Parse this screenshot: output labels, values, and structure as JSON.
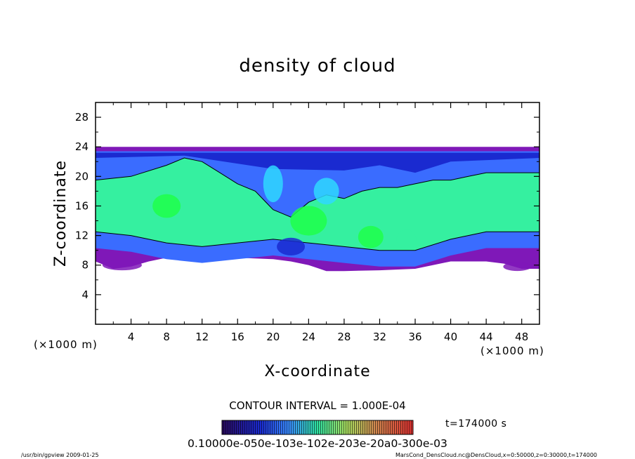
{
  "chart_data": {
    "type": "heatmap",
    "title": "density of cloud",
    "xlabel": "X-coordinate",
    "ylabel": "Z-coordinate",
    "x_unit": "(×1000 m)",
    "y_unit": "(×1000 m)",
    "xlim": [
      0,
      50
    ],
    "ylim": [
      0,
      30
    ],
    "x_ticks": [
      4,
      8,
      12,
      16,
      20,
      24,
      28,
      32,
      36,
      40,
      44,
      48
    ],
    "y_ticks": [
      4,
      8,
      12,
      16,
      20,
      24,
      28
    ],
    "x_tick_labels": [
      "4",
      "8",
      "12",
      "16",
      "20",
      "24",
      "28",
      "32",
      "36",
      "40",
      "44",
      "48"
    ],
    "y_tick_labels": [
      "4",
      "8",
      "12",
      "16",
      "20",
      "24",
      "28"
    ],
    "contour_interval_text": "CONTOUR INTERVAL = 1.000E-04",
    "time_text": "t=174000 s",
    "colorbar_text": "0.10000e-050e-103e-102e-203e-20a0-300e-03",
    "footer_left": "/usr/bin/gpview  2009-01-25",
    "footer_right": "MarsCond_DensCloud.nc@DensCloud,x=0:50000,z=0:30000,t=174000",
    "cloud_top_z": 24,
    "cloud_base_z": 7,
    "green_top_profile": {
      "x": [
        0,
        4,
        8,
        10,
        12,
        14,
        16,
        18,
        20,
        22,
        24,
        26,
        28,
        30,
        32,
        34,
        36,
        38,
        40,
        42,
        44,
        46,
        48,
        50
      ],
      "z": [
        19.5,
        20.0,
        21.5,
        22.5,
        22.0,
        20.5,
        19.0,
        18.0,
        15.5,
        14.5,
        16.5,
        17.5,
        17.0,
        18.0,
        18.5,
        18.5,
        19.0,
        19.5,
        19.5,
        20.0,
        20.5,
        20.5,
        20.5,
        20.5
      ]
    },
    "green_bottom_profile": {
      "x": [
        0,
        4,
        8,
        12,
        16,
        20,
        24,
        28,
        32,
        36,
        40,
        44,
        48,
        50
      ],
      "z": [
        12.5,
        12.0,
        11.0,
        10.5,
        11.0,
        11.5,
        11.0,
        10.5,
        10.0,
        10.0,
        11.5,
        12.5,
        12.5,
        12.5
      ]
    },
    "purple_base_profile": {
      "x": [
        0,
        2,
        4,
        6,
        8,
        12,
        16,
        20,
        22,
        24,
        26,
        28,
        32,
        36,
        38,
        40,
        44,
        46,
        48,
        50
      ],
      "z": [
        8.5,
        7.5,
        7.8,
        8.5,
        9.0,
        9.2,
        9.0,
        8.8,
        8.5,
        8.0,
        7.2,
        7.2,
        7.3,
        7.5,
        8.0,
        8.5,
        8.5,
        8.2,
        7.5,
        7.5
      ]
    },
    "colors": {
      "purple": "#7f18b8",
      "dark_blue": "#1a2ad0",
      "blue": "#3a6cff",
      "cyan": "#2fd8ff",
      "green": "#35f0a0",
      "bright_green": "#1eff4a"
    }
  }
}
